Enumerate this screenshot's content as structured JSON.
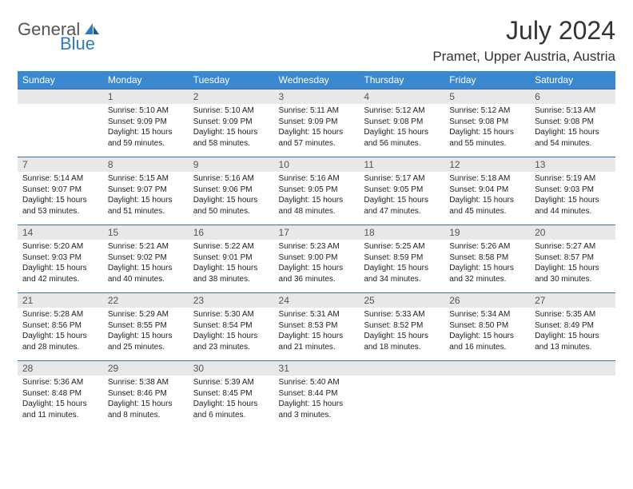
{
  "logo": {
    "text1": "General",
    "text2": "Blue"
  },
  "title": "July 2024",
  "location": "Pramet, Upper Austria, Austria",
  "colors": {
    "header_bg": "#3a89d0",
    "header_text": "#ffffff",
    "daynum_bg": "#e8e8e8",
    "daynum_text": "#555555",
    "divider": "#3a6fa5",
    "body_text": "#222222",
    "logo_gray": "#555555",
    "logo_blue": "#2c7bc4"
  },
  "dayHeaders": [
    "Sunday",
    "Monday",
    "Tuesday",
    "Wednesday",
    "Thursday",
    "Friday",
    "Saturday"
  ],
  "weeks": [
    {
      "nums": [
        "",
        "1",
        "2",
        "3",
        "4",
        "5",
        "6"
      ],
      "cells": [
        null,
        {
          "sunrise": "Sunrise: 5:10 AM",
          "sunset": "Sunset: 9:09 PM",
          "d1": "Daylight: 15 hours",
          "d2": "and 59 minutes."
        },
        {
          "sunrise": "Sunrise: 5:10 AM",
          "sunset": "Sunset: 9:09 PM",
          "d1": "Daylight: 15 hours",
          "d2": "and 58 minutes."
        },
        {
          "sunrise": "Sunrise: 5:11 AM",
          "sunset": "Sunset: 9:09 PM",
          "d1": "Daylight: 15 hours",
          "d2": "and 57 minutes."
        },
        {
          "sunrise": "Sunrise: 5:12 AM",
          "sunset": "Sunset: 9:08 PM",
          "d1": "Daylight: 15 hours",
          "d2": "and 56 minutes."
        },
        {
          "sunrise": "Sunrise: 5:12 AM",
          "sunset": "Sunset: 9:08 PM",
          "d1": "Daylight: 15 hours",
          "d2": "and 55 minutes."
        },
        {
          "sunrise": "Sunrise: 5:13 AM",
          "sunset": "Sunset: 9:08 PM",
          "d1": "Daylight: 15 hours",
          "d2": "and 54 minutes."
        }
      ]
    },
    {
      "nums": [
        "7",
        "8",
        "9",
        "10",
        "11",
        "12",
        "13"
      ],
      "cells": [
        {
          "sunrise": "Sunrise: 5:14 AM",
          "sunset": "Sunset: 9:07 PM",
          "d1": "Daylight: 15 hours",
          "d2": "and 53 minutes."
        },
        {
          "sunrise": "Sunrise: 5:15 AM",
          "sunset": "Sunset: 9:07 PM",
          "d1": "Daylight: 15 hours",
          "d2": "and 51 minutes."
        },
        {
          "sunrise": "Sunrise: 5:16 AM",
          "sunset": "Sunset: 9:06 PM",
          "d1": "Daylight: 15 hours",
          "d2": "and 50 minutes."
        },
        {
          "sunrise": "Sunrise: 5:16 AM",
          "sunset": "Sunset: 9:05 PM",
          "d1": "Daylight: 15 hours",
          "d2": "and 48 minutes."
        },
        {
          "sunrise": "Sunrise: 5:17 AM",
          "sunset": "Sunset: 9:05 PM",
          "d1": "Daylight: 15 hours",
          "d2": "and 47 minutes."
        },
        {
          "sunrise": "Sunrise: 5:18 AM",
          "sunset": "Sunset: 9:04 PM",
          "d1": "Daylight: 15 hours",
          "d2": "and 45 minutes."
        },
        {
          "sunrise": "Sunrise: 5:19 AM",
          "sunset": "Sunset: 9:03 PM",
          "d1": "Daylight: 15 hours",
          "d2": "and 44 minutes."
        }
      ]
    },
    {
      "nums": [
        "14",
        "15",
        "16",
        "17",
        "18",
        "19",
        "20"
      ],
      "cells": [
        {
          "sunrise": "Sunrise: 5:20 AM",
          "sunset": "Sunset: 9:03 PM",
          "d1": "Daylight: 15 hours",
          "d2": "and 42 minutes."
        },
        {
          "sunrise": "Sunrise: 5:21 AM",
          "sunset": "Sunset: 9:02 PM",
          "d1": "Daylight: 15 hours",
          "d2": "and 40 minutes."
        },
        {
          "sunrise": "Sunrise: 5:22 AM",
          "sunset": "Sunset: 9:01 PM",
          "d1": "Daylight: 15 hours",
          "d2": "and 38 minutes."
        },
        {
          "sunrise": "Sunrise: 5:23 AM",
          "sunset": "Sunset: 9:00 PM",
          "d1": "Daylight: 15 hours",
          "d2": "and 36 minutes."
        },
        {
          "sunrise": "Sunrise: 5:25 AM",
          "sunset": "Sunset: 8:59 PM",
          "d1": "Daylight: 15 hours",
          "d2": "and 34 minutes."
        },
        {
          "sunrise": "Sunrise: 5:26 AM",
          "sunset": "Sunset: 8:58 PM",
          "d1": "Daylight: 15 hours",
          "d2": "and 32 minutes."
        },
        {
          "sunrise": "Sunrise: 5:27 AM",
          "sunset": "Sunset: 8:57 PM",
          "d1": "Daylight: 15 hours",
          "d2": "and 30 minutes."
        }
      ]
    },
    {
      "nums": [
        "21",
        "22",
        "23",
        "24",
        "25",
        "26",
        "27"
      ],
      "cells": [
        {
          "sunrise": "Sunrise: 5:28 AM",
          "sunset": "Sunset: 8:56 PM",
          "d1": "Daylight: 15 hours",
          "d2": "and 28 minutes."
        },
        {
          "sunrise": "Sunrise: 5:29 AM",
          "sunset": "Sunset: 8:55 PM",
          "d1": "Daylight: 15 hours",
          "d2": "and 25 minutes."
        },
        {
          "sunrise": "Sunrise: 5:30 AM",
          "sunset": "Sunset: 8:54 PM",
          "d1": "Daylight: 15 hours",
          "d2": "and 23 minutes."
        },
        {
          "sunrise": "Sunrise: 5:31 AM",
          "sunset": "Sunset: 8:53 PM",
          "d1": "Daylight: 15 hours",
          "d2": "and 21 minutes."
        },
        {
          "sunrise": "Sunrise: 5:33 AM",
          "sunset": "Sunset: 8:52 PM",
          "d1": "Daylight: 15 hours",
          "d2": "and 18 minutes."
        },
        {
          "sunrise": "Sunrise: 5:34 AM",
          "sunset": "Sunset: 8:50 PM",
          "d1": "Daylight: 15 hours",
          "d2": "and 16 minutes."
        },
        {
          "sunrise": "Sunrise: 5:35 AM",
          "sunset": "Sunset: 8:49 PM",
          "d1": "Daylight: 15 hours",
          "d2": "and 13 minutes."
        }
      ]
    },
    {
      "nums": [
        "28",
        "29",
        "30",
        "31",
        "",
        "",
        ""
      ],
      "cells": [
        {
          "sunrise": "Sunrise: 5:36 AM",
          "sunset": "Sunset: 8:48 PM",
          "d1": "Daylight: 15 hours",
          "d2": "and 11 minutes."
        },
        {
          "sunrise": "Sunrise: 5:38 AM",
          "sunset": "Sunset: 8:46 PM",
          "d1": "Daylight: 15 hours",
          "d2": "and 8 minutes."
        },
        {
          "sunrise": "Sunrise: 5:39 AM",
          "sunset": "Sunset: 8:45 PM",
          "d1": "Daylight: 15 hours",
          "d2": "and 6 minutes."
        },
        {
          "sunrise": "Sunrise: 5:40 AM",
          "sunset": "Sunset: 8:44 PM",
          "d1": "Daylight: 15 hours",
          "d2": "and 3 minutes."
        },
        null,
        null,
        null
      ]
    }
  ]
}
